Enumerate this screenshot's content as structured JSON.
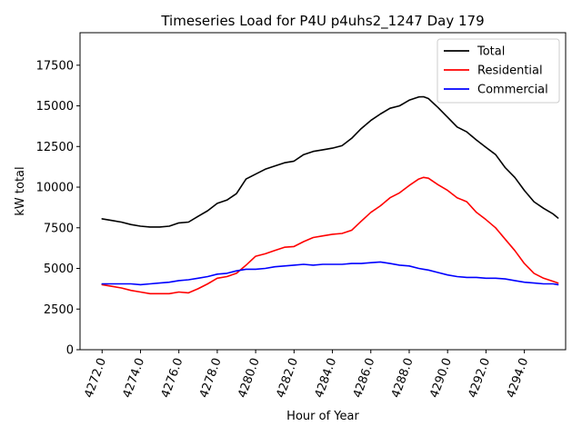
{
  "chart_data": {
    "type": "line",
    "title": "Timeseries Load for P4U p4uhs2_1247  Day 179",
    "xlabel": "Hour of Year",
    "ylabel": "kW total",
    "xlim": [
      4270.85,
      4296.15
    ],
    "ylim": [
      0,
      19500
    ],
    "xticks": [
      4272,
      4274,
      4276,
      4278,
      4280,
      4282,
      4284,
      4286,
      4288,
      4290,
      4292,
      4294
    ],
    "xtick_labels": [
      "4272.0",
      "4274.0",
      "4276.0",
      "4278.0",
      "4280.0",
      "4282.0",
      "4284.0",
      "4286.0",
      "4288.0",
      "4290.0",
      "4292.0",
      "4294.0"
    ],
    "yticks": [
      0,
      2500,
      5000,
      7500,
      10000,
      12500,
      15000,
      17500
    ],
    "ytick_labels": [
      "0",
      "2500",
      "5000",
      "7500",
      "10000",
      "12500",
      "15000",
      "17500"
    ],
    "legend_position": "upper-right",
    "series": [
      {
        "name": "Total",
        "color": "#000000",
        "x": [
          4272.0,
          4272.5,
          4273.0,
          4273.5,
          4274.0,
          4274.5,
          4275.0,
          4275.5,
          4276.0,
          4276.5,
          4277.0,
          4277.5,
          4278.0,
          4278.5,
          4279.0,
          4279.5,
          4280.0,
          4280.5,
          4281.0,
          4281.5,
          4282.0,
          4282.5,
          4283.0,
          4283.5,
          4284.0,
          4284.5,
          4285.0,
          4285.5,
          4286.0,
          4286.5,
          4287.0,
          4287.5,
          4288.0,
          4288.5,
          4288.75,
          4289.0,
          4289.5,
          4290.0,
          4290.5,
          4291.0,
          4291.5,
          4292.0,
          4292.5,
          4293.0,
          4293.5,
          4294.0,
          4294.5,
          4295.0,
          4295.5,
          4295.75
        ],
        "values": [
          8050,
          7950,
          7850,
          7700,
          7600,
          7550,
          7550,
          7600,
          7800,
          7850,
          8200,
          8550,
          9000,
          9200,
          9600,
          10500,
          10800,
          11100,
          11300,
          11500,
          11600,
          12000,
          12200,
          12300,
          12400,
          12550,
          13000,
          13600,
          14100,
          14500,
          14850,
          15000,
          15350,
          15550,
          15560,
          15450,
          14900,
          14300,
          13700,
          13400,
          12900,
          12450,
          12000,
          11200,
          10600,
          9800,
          9100,
          8700,
          8350,
          8100
        ]
      },
      {
        "name": "Residential",
        "color": "#ff0000",
        "x": [
          4272.0,
          4272.5,
          4273.0,
          4273.5,
          4274.0,
          4274.5,
          4275.0,
          4275.5,
          4276.0,
          4276.5,
          4277.0,
          4277.5,
          4278.0,
          4278.5,
          4279.0,
          4279.5,
          4280.0,
          4280.5,
          4281.0,
          4281.5,
          4282.0,
          4282.5,
          4283.0,
          4283.5,
          4284.0,
          4284.5,
          4285.0,
          4285.5,
          4286.0,
          4286.5,
          4287.0,
          4287.5,
          4288.0,
          4288.5,
          4288.75,
          4289.0,
          4289.5,
          4290.0,
          4290.5,
          4291.0,
          4291.5,
          4292.0,
          4292.5,
          4293.0,
          4293.5,
          4294.0,
          4294.5,
          4295.0,
          4295.5,
          4295.75
        ],
        "values": [
          4000,
          3900,
          3800,
          3650,
          3550,
          3450,
          3450,
          3450,
          3550,
          3500,
          3750,
          4050,
          4400,
          4500,
          4700,
          5200,
          5750,
          5900,
          6100,
          6300,
          6350,
          6650,
          6900,
          7000,
          7100,
          7150,
          7350,
          7900,
          8450,
          8850,
          9350,
          9650,
          10100,
          10500,
          10600,
          10550,
          10150,
          9800,
          9350,
          9100,
          8450,
          8000,
          7500,
          6800,
          6100,
          5300,
          4700,
          4400,
          4200,
          4100
        ]
      },
      {
        "name": "Commercial",
        "color": "#0000ff",
        "x": [
          4272.0,
          4272.5,
          4273.0,
          4273.5,
          4274.0,
          4274.5,
          4275.0,
          4275.5,
          4276.0,
          4276.5,
          4277.0,
          4277.5,
          4278.0,
          4278.5,
          4279.0,
          4279.5,
          4280.0,
          4280.5,
          4281.0,
          4281.5,
          4282.0,
          4282.5,
          4283.0,
          4283.5,
          4284.0,
          4284.5,
          4285.0,
          4285.5,
          4286.0,
          4286.5,
          4287.0,
          4287.5,
          4288.0,
          4288.5,
          4288.75,
          4289.0,
          4289.5,
          4290.0,
          4290.5,
          4291.0,
          4291.5,
          4292.0,
          4292.5,
          4293.0,
          4293.5,
          4294.0,
          4294.5,
          4295.0,
          4295.5,
          4295.75
        ],
        "values": [
          4050,
          4050,
          4050,
          4050,
          4000,
          4050,
          4100,
          4150,
          4250,
          4300,
          4400,
          4500,
          4650,
          4700,
          4850,
          4950,
          4950,
          5000,
          5100,
          5150,
          5200,
          5250,
          5200,
          5250,
          5250,
          5250,
          5300,
          5300,
          5350,
          5400,
          5300,
          5200,
          5150,
          5000,
          4950,
          4900,
          4750,
          4600,
          4500,
          4450,
          4450,
          4400,
          4400,
          4350,
          4250,
          4150,
          4100,
          4050,
          4050,
          4000
        ]
      }
    ]
  }
}
